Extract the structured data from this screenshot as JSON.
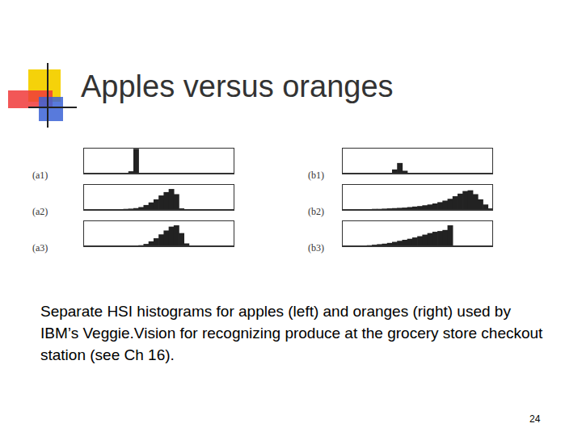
{
  "title": "Apples versus oranges",
  "caption": "Separate HSI histograms for apples (left) and oranges (right) used by IBM’s Veggie.Vision for recognizing produce at the grocery store checkout station (see Ch 16).",
  "page_number": 24,
  "chart_data": [
    {
      "type": "bar",
      "title": "(a1)",
      "color": "#222222",
      "grid": false,
      "tick_labels": false,
      "bins": [
        0,
        1,
        2,
        3,
        4,
        5,
        6,
        7,
        8,
        9,
        10,
        11,
        12,
        13,
        14,
        15,
        16,
        17,
        18,
        19,
        20,
        21,
        22,
        23,
        24,
        25,
        26,
        27,
        28,
        29,
        30
      ],
      "values": [
        0,
        0,
        0,
        0,
        0,
        0,
        0,
        0,
        0,
        8,
        95,
        0,
        0,
        0,
        0,
        0,
        0,
        0,
        0,
        0,
        0,
        0,
        0,
        0,
        0,
        0,
        0,
        0,
        0,
        0
      ],
      "xlim": [
        0,
        30
      ],
      "ylim": [
        0,
        100
      ]
    },
    {
      "type": "bar",
      "title": "(a2)",
      "color": "#222222",
      "grid": false,
      "tick_labels": false,
      "bins": [
        0,
        1,
        2,
        3,
        4,
        5,
        6,
        7,
        8,
        9,
        10,
        11,
        12,
        13,
        14,
        15,
        16,
        17,
        18,
        19,
        20,
        21,
        22,
        23,
        24,
        25,
        26,
        27,
        28,
        29,
        30
      ],
      "values": [
        0,
        0,
        0,
        0,
        0,
        1,
        1,
        2,
        3,
        4,
        6,
        10,
        18,
        28,
        40,
        55,
        68,
        80,
        60,
        5,
        0,
        0,
        0,
        0,
        0,
        0,
        0,
        0,
        0,
        0
      ],
      "xlim": [
        0,
        30
      ],
      "ylim": [
        0,
        100
      ]
    },
    {
      "type": "bar",
      "title": "(a3)",
      "color": "#222222",
      "grid": false,
      "tick_labels": false,
      "bins": [
        0,
        1,
        2,
        3,
        4,
        5,
        6,
        7,
        8,
        9,
        10,
        11,
        12,
        13,
        14,
        15,
        16,
        17,
        18,
        19,
        20,
        21,
        22,
        23,
        24,
        25,
        26,
        27,
        28,
        29,
        30
      ],
      "values": [
        0,
        0,
        0,
        0,
        0,
        0,
        0,
        0,
        0,
        0,
        0,
        3,
        8,
        18,
        30,
        45,
        60,
        75,
        80,
        50,
        10,
        0,
        0,
        0,
        0,
        0,
        0,
        0,
        0,
        0
      ],
      "xlim": [
        0,
        30
      ],
      "ylim": [
        0,
        100
      ]
    },
    {
      "type": "bar",
      "title": "(b1)",
      "color": "#222222",
      "grid": false,
      "tick_labels": false,
      "bins": [
        0,
        1,
        2,
        3,
        4,
        5,
        6,
        7,
        8,
        9,
        10,
        11,
        12,
        13,
        14,
        15,
        16,
        17,
        18,
        19,
        20,
        21,
        22,
        23,
        24,
        25,
        26,
        27,
        28,
        29,
        30
      ],
      "values": [
        0,
        0,
        0,
        0,
        0,
        0,
        0,
        0,
        0,
        0,
        15,
        40,
        10,
        0,
        0,
        0,
        0,
        0,
        0,
        0,
        0,
        0,
        0,
        0,
        0,
        0,
        0,
        0,
        0,
        0
      ],
      "xlim": [
        0,
        30
      ],
      "ylim": [
        0,
        100
      ]
    },
    {
      "type": "bar",
      "title": "(b2)",
      "color": "#222222",
      "grid": false,
      "tick_labels": false,
      "bins": [
        0,
        1,
        2,
        3,
        4,
        5,
        6,
        7,
        8,
        9,
        10,
        11,
        12,
        13,
        14,
        15,
        16,
        17,
        18,
        19,
        20,
        21,
        22,
        23,
        24,
        25,
        26,
        27,
        28,
        29,
        30
      ],
      "values": [
        0,
        0,
        1,
        1,
        2,
        2,
        3,
        3,
        4,
        5,
        6,
        7,
        8,
        10,
        12,
        14,
        17,
        20,
        24,
        29,
        35,
        42,
        52,
        62,
        72,
        75,
        60,
        40,
        20,
        5
      ],
      "xlim": [
        0,
        30
      ],
      "ylim": [
        0,
        100
      ]
    },
    {
      "type": "bar",
      "title": "(b3)",
      "color": "#222222",
      "grid": false,
      "tick_labels": false,
      "bins": [
        0,
        1,
        2,
        3,
        4,
        5,
        6,
        7,
        8,
        9,
        10,
        11,
        12,
        13,
        14,
        15,
        16,
        17,
        18,
        19,
        20,
        21,
        22,
        23,
        24,
        25,
        26,
        27,
        28,
        29,
        30
      ],
      "values": [
        0,
        0,
        0,
        0,
        2,
        3,
        5,
        7,
        9,
        12,
        16,
        20,
        24,
        28,
        33,
        38,
        44,
        50,
        55,
        58,
        62,
        80,
        0,
        0,
        0,
        0,
        0,
        0,
        0,
        0
      ],
      "xlim": [
        0,
        30
      ],
      "ylim": [
        0,
        100
      ]
    }
  ]
}
